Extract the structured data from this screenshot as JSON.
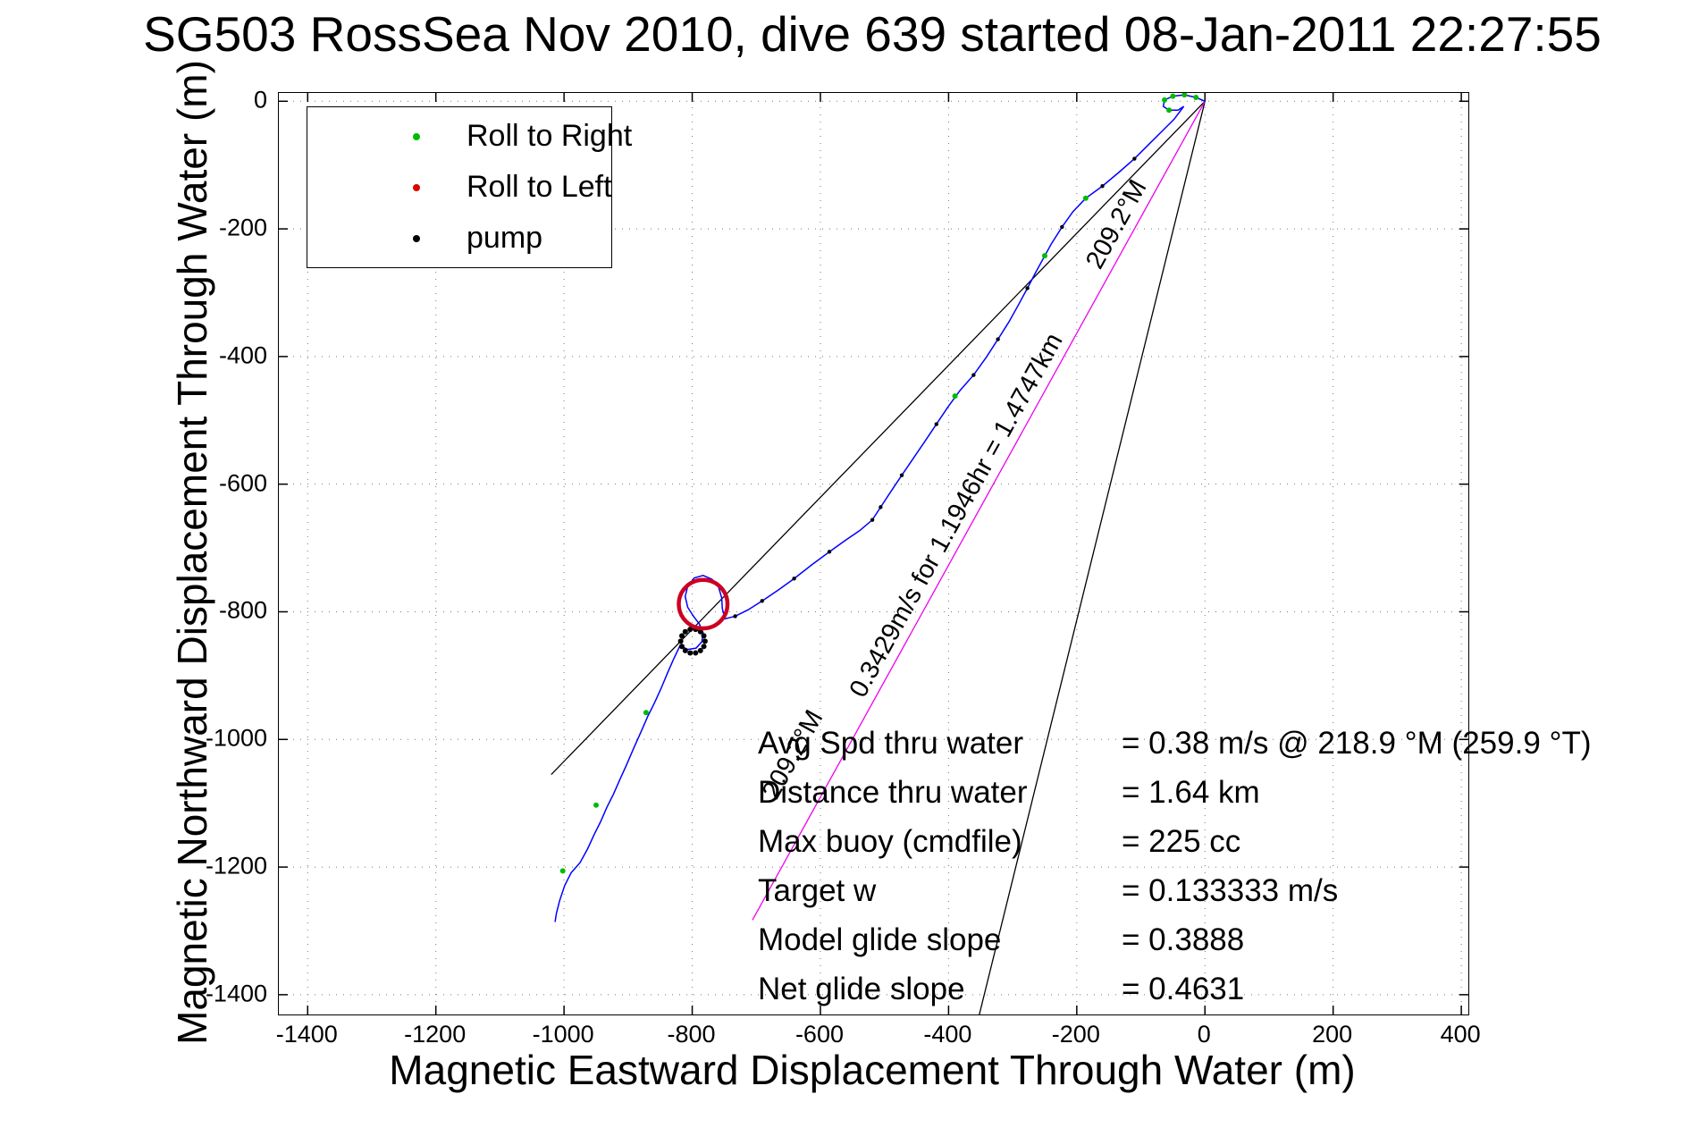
{
  "chart_data": {
    "type": "line",
    "title": "SG503 RossSea Nov 2010, dive 639 started 08-Jan-2011 22:27:55",
    "xlabel": "Magnetic Eastward Displacement Through Water (m)",
    "ylabel": "Magnetic Northward Displacement Through Water (m)",
    "xlim": [
      -1445,
      411
    ],
    "ylim": [
      -1431,
      13
    ],
    "xticks": [
      -1400,
      -1200,
      -1000,
      -800,
      -600,
      -400,
      -200,
      0,
      200,
      400
    ],
    "yticks": [
      0,
      -200,
      -400,
      -600,
      -800,
      -1000,
      -1200,
      -1400
    ],
    "grid": true,
    "legend": {
      "position": "top-left",
      "items": [
        {
          "label": "Roll to Right",
          "color": "#00bb00"
        },
        {
          "label": "Roll to Left",
          "color": "#dd0000"
        },
        {
          "label": "pump",
          "color": "#000000"
        }
      ]
    },
    "track": {
      "name": "dive-track-through-water",
      "color": "#0000ff",
      "points": [
        [
          0,
          0
        ],
        [
          -14,
          6
        ],
        [
          -32,
          10
        ],
        [
          -50,
          8
        ],
        [
          -63,
          2
        ],
        [
          -65,
          -8
        ],
        [
          -56,
          -14
        ],
        [
          -42,
          -14
        ],
        [
          -33,
          -8
        ],
        [
          -48,
          -28
        ],
        [
          -66,
          -46
        ],
        [
          -88,
          -68
        ],
        [
          -110,
          -90
        ],
        [
          -135,
          -112
        ],
        [
          -160,
          -133
        ],
        [
          -186,
          -152
        ],
        [
          -206,
          -173
        ],
        [
          -223,
          -197
        ],
        [
          -240,
          -224
        ],
        [
          -252,
          -246
        ],
        [
          -264,
          -268
        ],
        [
          -277,
          -293
        ],
        [
          -291,
          -319
        ],
        [
          -306,
          -346
        ],
        [
          -323,
          -373
        ],
        [
          -341,
          -401
        ],
        [
          -361,
          -429
        ],
        [
          -382,
          -453
        ],
        [
          -401,
          -479
        ],
        [
          -419,
          -506
        ],
        [
          -437,
          -533
        ],
        [
          -456,
          -561
        ],
        [
          -473,
          -586
        ],
        [
          -491,
          -613
        ],
        [
          -506,
          -636
        ],
        [
          -519,
          -656
        ],
        [
          -539,
          -673
        ],
        [
          -561,
          -688
        ],
        [
          -586,
          -706
        ],
        [
          -613,
          -726
        ],
        [
          -641,
          -748
        ],
        [
          -666,
          -766
        ],
        [
          -691,
          -783
        ],
        [
          -713,
          -797
        ],
        [
          -733,
          -807
        ],
        [
          -749,
          -811
        ],
        [
          -753,
          -795
        ],
        [
          -754,
          -778
        ],
        [
          -759,
          -761
        ],
        [
          -769,
          -749
        ],
        [
          -783,
          -743
        ],
        [
          -797,
          -747
        ],
        [
          -807,
          -760
        ],
        [
          -811,
          -776
        ],
        [
          -807,
          -793
        ],
        [
          -798,
          -807
        ],
        [
          -789,
          -819
        ],
        [
          -783,
          -833
        ],
        [
          -785,
          -847
        ],
        [
          -794,
          -857
        ],
        [
          -807,
          -859
        ],
        [
          -819,
          -853
        ],
        [
          -829,
          -874
        ],
        [
          -839,
          -897
        ],
        [
          -849,
          -921
        ],
        [
          -859,
          -943
        ],
        [
          -869,
          -963
        ],
        [
          -879,
          -986
        ],
        [
          -891,
          -1013
        ],
        [
          -903,
          -1041
        ],
        [
          -913,
          -1063
        ],
        [
          -923,
          -1086
        ],
        [
          -933,
          -1106
        ],
        [
          -943,
          -1129
        ],
        [
          -953,
          -1149
        ],
        [
          -963,
          -1171
        ],
        [
          -975,
          -1193
        ],
        [
          -989,
          -1209
        ],
        [
          -999,
          -1229
        ],
        [
          -1007,
          -1253
        ],
        [
          -1012,
          -1273
        ],
        [
          -1014,
          -1286
        ]
      ]
    },
    "ref_lines": [
      {
        "name": "bearing-line",
        "color": "#000000",
        "points": [
          [
            0,
            0
          ],
          [
            -1020,
            -1055
          ]
        ]
      },
      {
        "name": "glide-line",
        "color": "#000000",
        "points": [
          [
            0,
            0
          ],
          [
            -352,
            -1431
          ]
        ]
      },
      {
        "name": "dead-reckoning-line",
        "color": "#ee00ee",
        "points": [
          [
            0,
            0
          ],
          [
            -706,
            -1283
          ]
        ]
      }
    ],
    "annotations": [
      {
        "text": "209.2°M",
        "x": -127,
        "y": -199,
        "rotate": -61
      },
      {
        "text": "0.3429m/s for 1.1946hr = 1.4747km",
        "x": -377,
        "y": -655,
        "rotate": -61
      },
      {
        "text": "209.2°M",
        "x": -632,
        "y": -1030,
        "rotate": -61
      }
    ],
    "markers": {
      "roll_right": {
        "color": "#00bb00",
        "points": [
          [
            -14,
            6
          ],
          [
            -32,
            10
          ],
          [
            -50,
            8
          ],
          [
            -63,
            2
          ],
          [
            -56,
            -14
          ],
          [
            -186,
            -152
          ],
          [
            -250,
            -242
          ],
          [
            -390,
            -462
          ],
          [
            -872,
            -958
          ],
          [
            -950,
            -1103
          ],
          [
            -1002,
            -1206
          ]
        ]
      },
      "roll_left_circle": {
        "color": "#cc0022",
        "center": [
          -783,
          -788
        ],
        "radius_m": 38
      },
      "pump": {
        "color": "#000000",
        "points": [
          [
            -110,
            -90
          ],
          [
            -160,
            -133
          ],
          [
            -223,
            -197
          ],
          [
            -277,
            -293
          ],
          [
            -323,
            -373
          ],
          [
            -361,
            -429
          ],
          [
            -419,
            -506
          ],
          [
            -473,
            -586
          ],
          [
            -506,
            -636
          ],
          [
            -519,
            -656
          ],
          [
            -586,
            -706
          ],
          [
            -641,
            -748
          ],
          [
            -691,
            -783
          ],
          [
            -733,
            -807
          ]
        ]
      },
      "pump_cluster": {
        "color": "#000000",
        "center": [
          -799,
          -846
        ],
        "radius_m": 19,
        "count": 14
      }
    },
    "stats_rows": [
      {
        "label": "Avg Spd thru water",
        "value": "=  0.38 m/s @ 218.9 °M (259.9 °T)"
      },
      {
        "label": "Distance thru water",
        "value": "=  1.64 km"
      },
      {
        "label": "Max buoy (cmdfile)",
        "value": "= 225 cc"
      },
      {
        "label": "Target w",
        "value": "= 0.133333 m/s"
      },
      {
        "label": "Model glide slope",
        "value": "= 0.3888"
      },
      {
        "label": "Net glide slope",
        "value": "= 0.4631"
      }
    ]
  }
}
